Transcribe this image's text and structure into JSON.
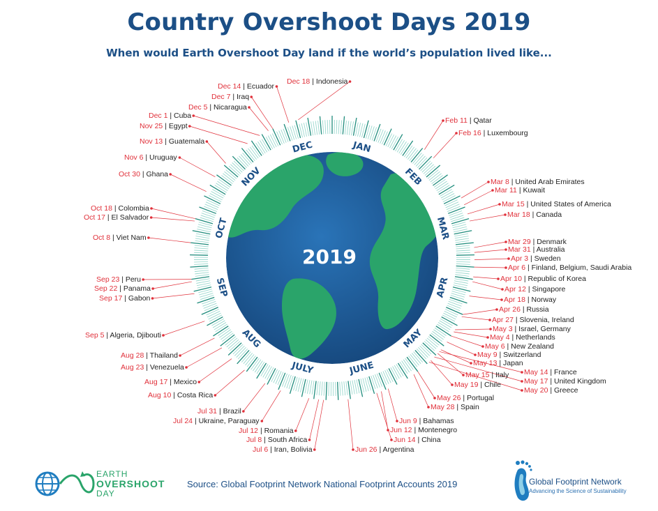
{
  "header": {
    "title": "Country Overshoot Days 2019",
    "subtitle": "When would Earth Overshoot Day land if the world’s population lived like..."
  },
  "center_year": "2019",
  "months": [
    "JAN",
    "FEB",
    "MAR",
    "APR",
    "MAY",
    "JUNE",
    "JULY",
    "AUG",
    "SEP",
    "OCT",
    "NOV",
    "DEC"
  ],
  "colors": {
    "title": "#1c4f86",
    "date": "#e0303a",
    "ocean": "#1f5d9c",
    "land": "#2aa46a",
    "ring": "#3aa59c",
    "label": "#222222"
  },
  "entries": [
    {
      "date": "Dec 14",
      "country": "Ecuador"
    },
    {
      "date": "Dec 18",
      "country": "Indonesia"
    },
    {
      "date": "Dec 7",
      "country": "Iraq"
    },
    {
      "date": "Dec 5",
      "country": "Nicaragua"
    },
    {
      "date": "Dec 1",
      "country": "Cuba"
    },
    {
      "date": "Nov 25",
      "country": "Egypt"
    },
    {
      "date": "Nov 13",
      "country": "Guatemala"
    },
    {
      "date": "Nov 6",
      "country": "Uruguay"
    },
    {
      "date": "Oct 30",
      "country": "Ghana"
    },
    {
      "date": "Oct 18",
      "country": "Colombia"
    },
    {
      "date": "Oct 17",
      "country": "El Salvador"
    },
    {
      "date": "Oct 8",
      "country": "Viet Nam"
    },
    {
      "date": "Sep 23",
      "country": "Peru"
    },
    {
      "date": "Sep 22",
      "country": "Panama"
    },
    {
      "date": "Sep 17",
      "country": "Gabon"
    },
    {
      "date": "Sep  5",
      "country": "Algeria, Djibouti"
    },
    {
      "date": "Aug 28",
      "country": "Thailand"
    },
    {
      "date": "Aug 23",
      "country": "Venezuela"
    },
    {
      "date": "Aug 17",
      "country": "Mexico"
    },
    {
      "date": "Aug 10",
      "country": "Costa Rica"
    },
    {
      "date": "Jul 31",
      "country": "Brazil"
    },
    {
      "date": "Jul 24",
      "country": "Ukraine, Paraguay"
    },
    {
      "date": "Jul 12",
      "country": "Romania"
    },
    {
      "date": "Jul 8",
      "country": "South Africa"
    },
    {
      "date": "Jul 6",
      "country": "Iran, Bolivia"
    },
    {
      "date": "Jun 26",
      "country": "Argentina"
    },
    {
      "date": "Jun 14",
      "country": "China"
    },
    {
      "date": "Jun 12",
      "country": "Montenegro"
    },
    {
      "date": "Jun 9",
      "country": "Bahamas"
    },
    {
      "date": "May 28",
      "country": "Spain"
    },
    {
      "date": "May 26",
      "country": "Portugal"
    },
    {
      "date": "May 20",
      "country": "Greece"
    },
    {
      "date": "May 19",
      "country": "Chile"
    },
    {
      "date": "May 17",
      "country": "United Kingdom"
    },
    {
      "date": "May 15",
      "country": "Italy"
    },
    {
      "date": "May 14",
      "country": "France"
    },
    {
      "date": "May 13",
      "country": "Japan"
    },
    {
      "date": "May 9",
      "country": "Switzerland"
    },
    {
      "date": "May 6",
      "country": "New Zealand"
    },
    {
      "date": "May 4",
      "country": "Netherlands"
    },
    {
      "date": "May 3",
      "country": "Israel, Germany"
    },
    {
      "date": "Apr 27",
      "country": "Slovenia, Ireland"
    },
    {
      "date": "Apr 26",
      "country": "Russia"
    },
    {
      "date": "Apr 18",
      "country": "Norway"
    },
    {
      "date": "Apr 12",
      "country": "Singapore"
    },
    {
      "date": "Apr 10",
      "country": "Republic of Korea"
    },
    {
      "date": "Apr 6",
      "country": "Finland, Belgium, Saudi Arabia"
    },
    {
      "date": "Apr 3",
      "country": "Sweden"
    },
    {
      "date": "Mar 31",
      "country": "Australia"
    },
    {
      "date": "Mar 29",
      "country": "Denmark"
    },
    {
      "date": "Mar 18",
      "country": "Canada"
    },
    {
      "date": "Mar 15",
      "country": "United States of America"
    },
    {
      "date": "Mar 11",
      "country": "Kuwait"
    },
    {
      "date": "Mar 8",
      "country": "United Arab Emirates"
    },
    {
      "date": "Feb 16",
      "country": "Luxembourg"
    },
    {
      "date": "Feb 11",
      "country": "Qatar"
    }
  ],
  "footer": {
    "source": "Source: Global Footprint Network National Footprint Accounts 2019",
    "eo_logo_line1": "EARTH",
    "eo_logo_line2": "OVERSHOOT",
    "eo_logo_line3": "DAY",
    "gfn_name": "Global Footprint Network",
    "gfn_tagline": "Advancing the Science of Sustainability"
  }
}
